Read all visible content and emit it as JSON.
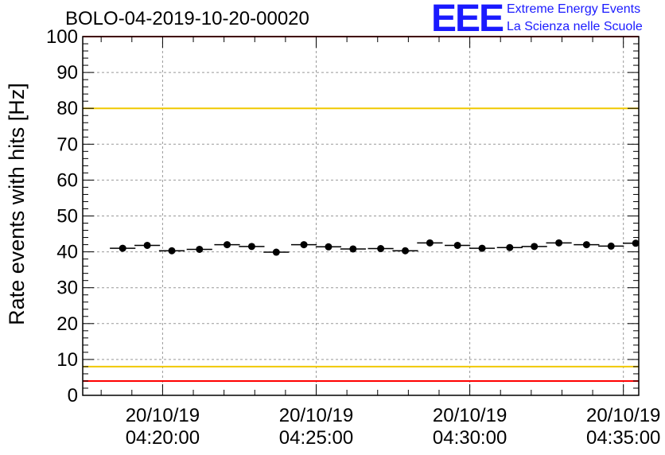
{
  "chart_data": {
    "type": "scatter",
    "title": "BOLO-04-2019-10-20-00020",
    "ylabel": "Rate events with hits [Hz]",
    "xlabel": "",
    "ylim": [
      0,
      100
    ],
    "yticks": [
      0,
      10,
      20,
      30,
      40,
      50,
      60,
      70,
      80,
      90,
      100
    ],
    "xlim_minutes": [
      -2.6,
      15.5
    ],
    "x_tick_labels": [
      {
        "date": "20/10/19",
        "time": "04:20:00",
        "minute": 0
      },
      {
        "date": "20/10/19",
        "time": "04:25:00",
        "minute": 5
      },
      {
        "date": "20/10/19",
        "time": "04:30:00",
        "minute": 10
      },
      {
        "date": "20/10/19",
        "time": "04:35:00",
        "minute": 15
      }
    ],
    "reference_lines": [
      {
        "value": 100,
        "color": "#ff0000"
      },
      {
        "value": 80,
        "color": "#f0c800"
      },
      {
        "value": 8,
        "color": "#f0c800"
      },
      {
        "value": 4,
        "color": "#ff0000"
      }
    ],
    "series": [
      {
        "name": "rate",
        "bin_width_minutes": 0.833,
        "x_minutes": [
          -1.3,
          -0.5,
          0.3,
          1.2,
          2.1,
          2.9,
          3.7,
          4.6,
          5.4,
          6.2,
          7.1,
          7.9,
          8.7,
          9.6,
          10.4,
          11.3,
          12.1,
          12.9,
          13.8,
          14.6,
          15.4
        ],
        "values": [
          41.0,
          41.8,
          40.3,
          40.7,
          42.0,
          41.5,
          39.9,
          42.0,
          41.4,
          40.8,
          40.9,
          40.3,
          42.5,
          41.8,
          41.0,
          41.2,
          41.5,
          42.5,
          42.0,
          41.6,
          42.4
        ]
      }
    ],
    "grid": true
  },
  "logo": {
    "mark": "EEE",
    "line1": "Extreme Energy Events",
    "line2": "La Scienza nelle Scuole"
  }
}
